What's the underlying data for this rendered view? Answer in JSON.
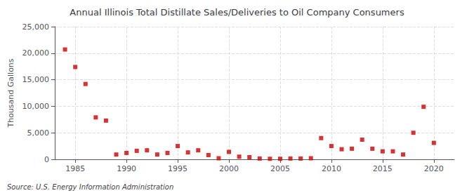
{
  "chart_data": {
    "type": "scatter",
    "title": "Annual Illinois Total Distillate Sales/Deliveries to Oil Company Consumers",
    "ylabel": "Thousand Gallons",
    "annotations": [
      "Source: U.S. Energy Information Administration"
    ],
    "x": [
      1984,
      1985,
      1986,
      1987,
      1988,
      1989,
      1990,
      1991,
      1992,
      1993,
      1994,
      1995,
      1996,
      1997,
      1998,
      1999,
      2000,
      2001,
      2002,
      2003,
      2004,
      2005,
      2006,
      2007,
      2008,
      2009,
      2010,
      2011,
      2012,
      2013,
      2014,
      2015,
      2016,
      2017,
      2018,
      2019,
      2020
    ],
    "values": [
      20700,
      17400,
      14200,
      7900,
      7300,
      900,
      1200,
      1600,
      1700,
      900,
      1200,
      2500,
      1300,
      1700,
      800,
      200,
      1400,
      500,
      400,
      150,
      100,
      100,
      150,
      150,
      200,
      4000,
      2500,
      1900,
      2000,
      3700,
      2000,
      1500,
      1500,
      900,
      5000,
      9900,
      3100
    ],
    "color": "#cc0000",
    "marker": "square",
    "xlim": [
      1983,
      2022
    ],
    "ylim": [
      0,
      25000
    ],
    "xticks": [
      1985,
      1990,
      1995,
      2000,
      2005,
      2010,
      2015,
      2020
    ],
    "yticks": [
      0,
      {
        "value": 5000,
        "label": "5,000"
      },
      {
        "value": 10000,
        "label": "10,000"
      },
      {
        "value": 15000,
        "label": "15,000"
      },
      {
        "value": 20000,
        "label": "20,000"
      },
      {
        "value": 25000,
        "label": "25,000"
      }
    ],
    "grid": true
  }
}
